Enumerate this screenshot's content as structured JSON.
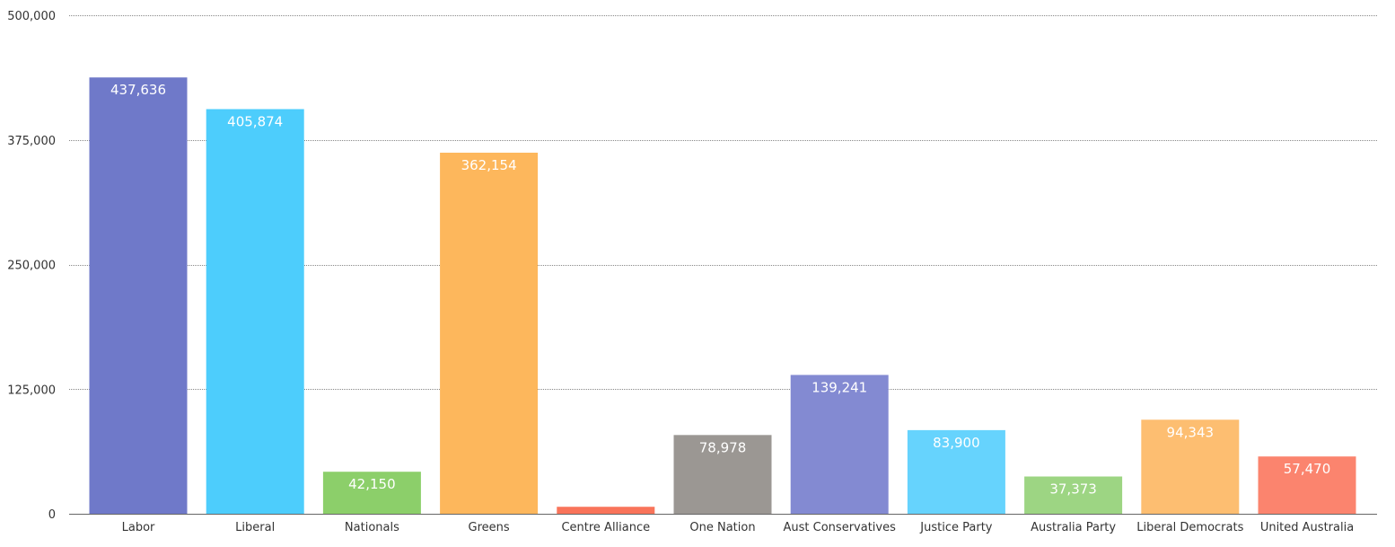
{
  "chart_data": {
    "type": "bar",
    "categories": [
      "Labor",
      "Liberal",
      "Nationals",
      "Greens",
      "Centre Alliance",
      "One Nation",
      "Aust Conservatives",
      "Justice Party",
      "Australia Party",
      "Liberal Democrats",
      "United Australia"
    ],
    "values": [
      437636,
      405874,
      42150,
      362154,
      7000,
      78978,
      139241,
      83900,
      37373,
      94343,
      57470
    ],
    "value_labels": [
      "437,636",
      "405,874",
      "42,150",
      "362,154",
      "",
      "78,978",
      "139,241",
      "83,900",
      "37,373",
      "94,343",
      "57,470"
    ],
    "colors": [
      "#6f79c9",
      "#4dcdfc",
      "#8ccf6a",
      "#fdb75c",
      "#f9745a",
      "#9b9793",
      "#838ad2",
      "#66d3fd",
      "#9dd583",
      "#fdbe71",
      "#fb846e"
    ],
    "yticks": [
      0,
      125000,
      250000,
      375000,
      500000
    ],
    "ytick_labels": [
      "0",
      "125,000",
      "250,000",
      "375,000",
      "500,000"
    ],
    "ylim": [
      0,
      500000
    ],
    "grid": true,
    "legend": "none",
    "title": "",
    "xlabel": "",
    "ylabel": ""
  }
}
